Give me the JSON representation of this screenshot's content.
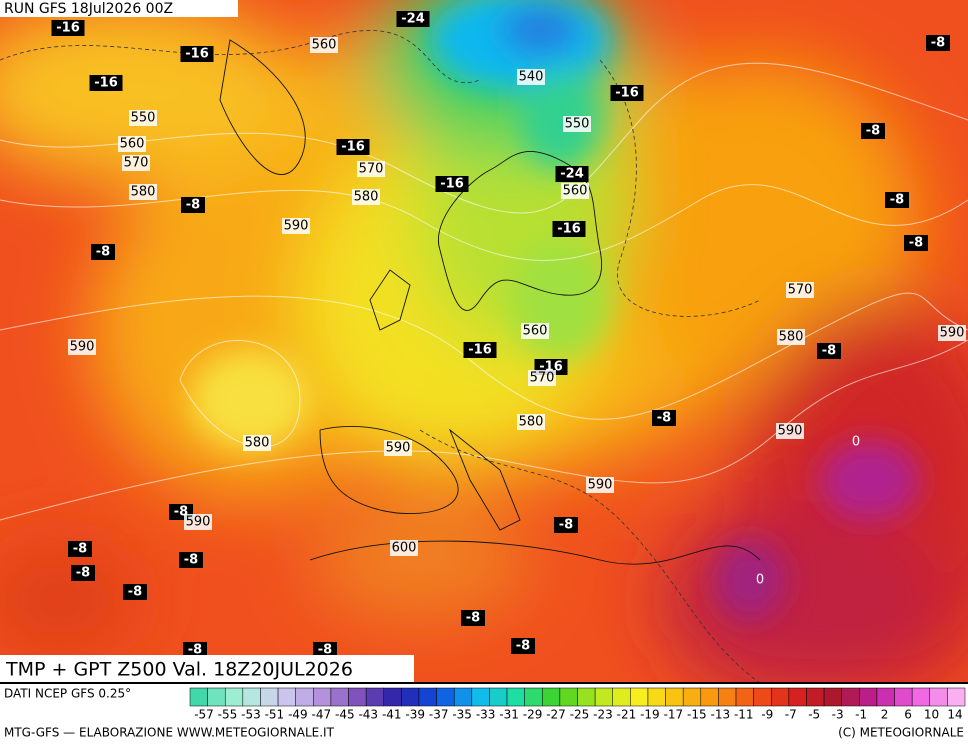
{
  "header": {
    "run": "RUN GFS 18Jul2026 00Z",
    "title": "TMP + GPT Z500 Val. 18Z20JUL2026"
  },
  "footer": {
    "source": "DATI NCEP GFS 0.25°",
    "credit": "MTG-GFS — ELABORAZIONE WWW.METEOGIORNALE.IT",
    "copyright": "(C) METEOGIORNALE"
  },
  "colorbar": {
    "labels": [
      "-57",
      "-55",
      "-53",
      "-51",
      "-49",
      "-47",
      "-45",
      "-43",
      "-41",
      "-39",
      "-37",
      "-35",
      "-33",
      "-31",
      "-29",
      "-27",
      "-25",
      "-23",
      "-21",
      "-19",
      "-17",
      "-15",
      "-13",
      "-11",
      "-9",
      "-7",
      "-5",
      "-3",
      "-1",
      "2",
      "6",
      "10",
      "14"
    ]
  },
  "map_labels": {
    "temps": [
      "-16",
      "-24",
      "-16",
      "-16",
      "-8",
      "-16",
      "-8",
      "-16",
      "-16",
      "-24",
      "-8",
      "-8",
      "-16",
      "-8",
      "-8",
      "-16",
      "-8",
      "-16",
      "-8",
      "-8",
      "-8",
      "-8",
      "-8",
      "-8",
      "-8",
      "-8",
      "-8",
      "-8",
      "-8"
    ],
    "heights": [
      "560",
      "540",
      "550",
      "550",
      "560",
      "570",
      "570",
      "560",
      "580",
      "580",
      "590",
      "570",
      "560",
      "580",
      "590",
      "590",
      "570",
      "580",
      "590",
      "580",
      "590",
      "590",
      "590",
      "600"
    ],
    "zero_isotherms": [
      "0",
      "0"
    ]
  }
}
